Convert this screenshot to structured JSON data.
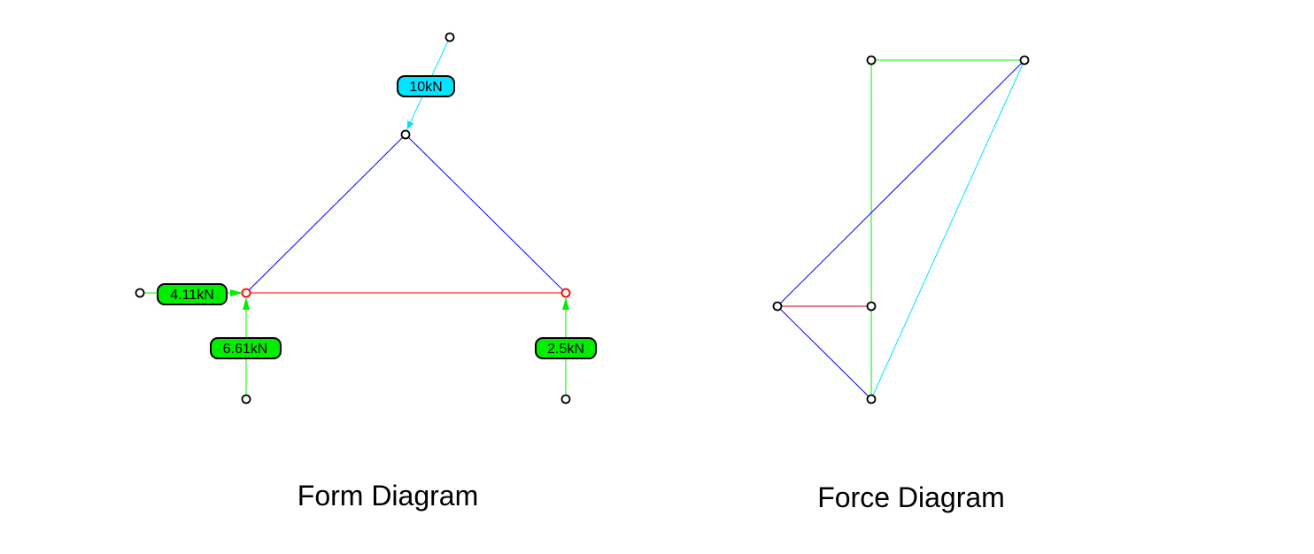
{
  "colors": {
    "background": "#ffffff",
    "compression": "#0000ff",
    "tension": "#ff0000",
    "load": "#00e5ff",
    "reaction": "#00ee00",
    "node_stroke": "#000000",
    "support_node_stroke": "#ff0000"
  },
  "form_diagram": {
    "caption": "Form Diagram",
    "loads": [
      {
        "id": "apex-load",
        "label": "10kN",
        "kind": "load"
      },
      {
        "id": "horizontal-reaction-left",
        "label": "4.11kN",
        "kind": "reaction"
      },
      {
        "id": "vertical-reaction-left",
        "label": "6.61kN",
        "kind": "reaction"
      },
      {
        "id": "vertical-reaction-right",
        "label": "2.5kN",
        "kind": "reaction"
      }
    ],
    "members": [
      {
        "id": "left-rafter",
        "kind": "compression"
      },
      {
        "id": "right-rafter",
        "kind": "compression"
      },
      {
        "id": "bottom-tie",
        "kind": "tension"
      }
    ]
  },
  "force_diagram": {
    "caption": "Force Diagram",
    "edges": [
      {
        "id": "top-reaction-edge",
        "kind": "reaction"
      },
      {
        "id": "vertical-reaction-edge",
        "kind": "reaction"
      },
      {
        "id": "long-compression-edge",
        "kind": "compression"
      },
      {
        "id": "load-edge",
        "kind": "load"
      },
      {
        "id": "tie-edge",
        "kind": "tension"
      },
      {
        "id": "short-compression-edge",
        "kind": "compression"
      }
    ]
  }
}
